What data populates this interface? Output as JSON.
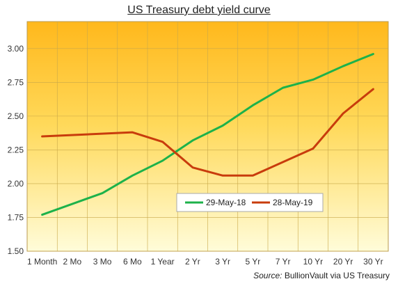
{
  "chart_data": {
    "type": "line",
    "title": "US Treasury  debt yield curve",
    "xlabel": "",
    "ylabel": "",
    "categories": [
      "1 Month",
      "2 Mo",
      "3 Mo",
      "6 Mo",
      "1 Year",
      "2 Yr",
      "3 Yr",
      "5 Yr",
      "7 Yr",
      "10 Yr",
      "20 Yr",
      "30 Yr"
    ],
    "ylim": [
      1.5,
      3.2
    ],
    "yticks": [
      1.5,
      1.75,
      2.0,
      2.25,
      2.5,
      2.75,
      3.0
    ],
    "ytick_labels": [
      "1.50",
      "1.75",
      "2.00",
      "2.25",
      "2.50",
      "2.75",
      "3.00"
    ],
    "grid": true,
    "legend_position": "lower-right",
    "series": [
      {
        "name": "29-May-18",
        "color": "#1db24a",
        "values": [
          1.77,
          1.85,
          1.93,
          2.06,
          2.17,
          2.32,
          2.43,
          2.58,
          2.71,
          2.77,
          2.87,
          2.96
        ]
      },
      {
        "name": "28-May-19",
        "color": "#c83c0c",
        "values": [
          2.35,
          null,
          null,
          2.38,
          2.31,
          2.12,
          2.06,
          2.06,
          2.16,
          2.26,
          2.52,
          2.7
        ]
      }
    ],
    "source_label": "Source:",
    "source_text": " BullionVault via US Treasury"
  },
  "colors": {
    "plot_bg_top": "#ffb81c",
    "plot_bg_bottom": "#fffcd9",
    "grid": "#c8a84a"
  }
}
